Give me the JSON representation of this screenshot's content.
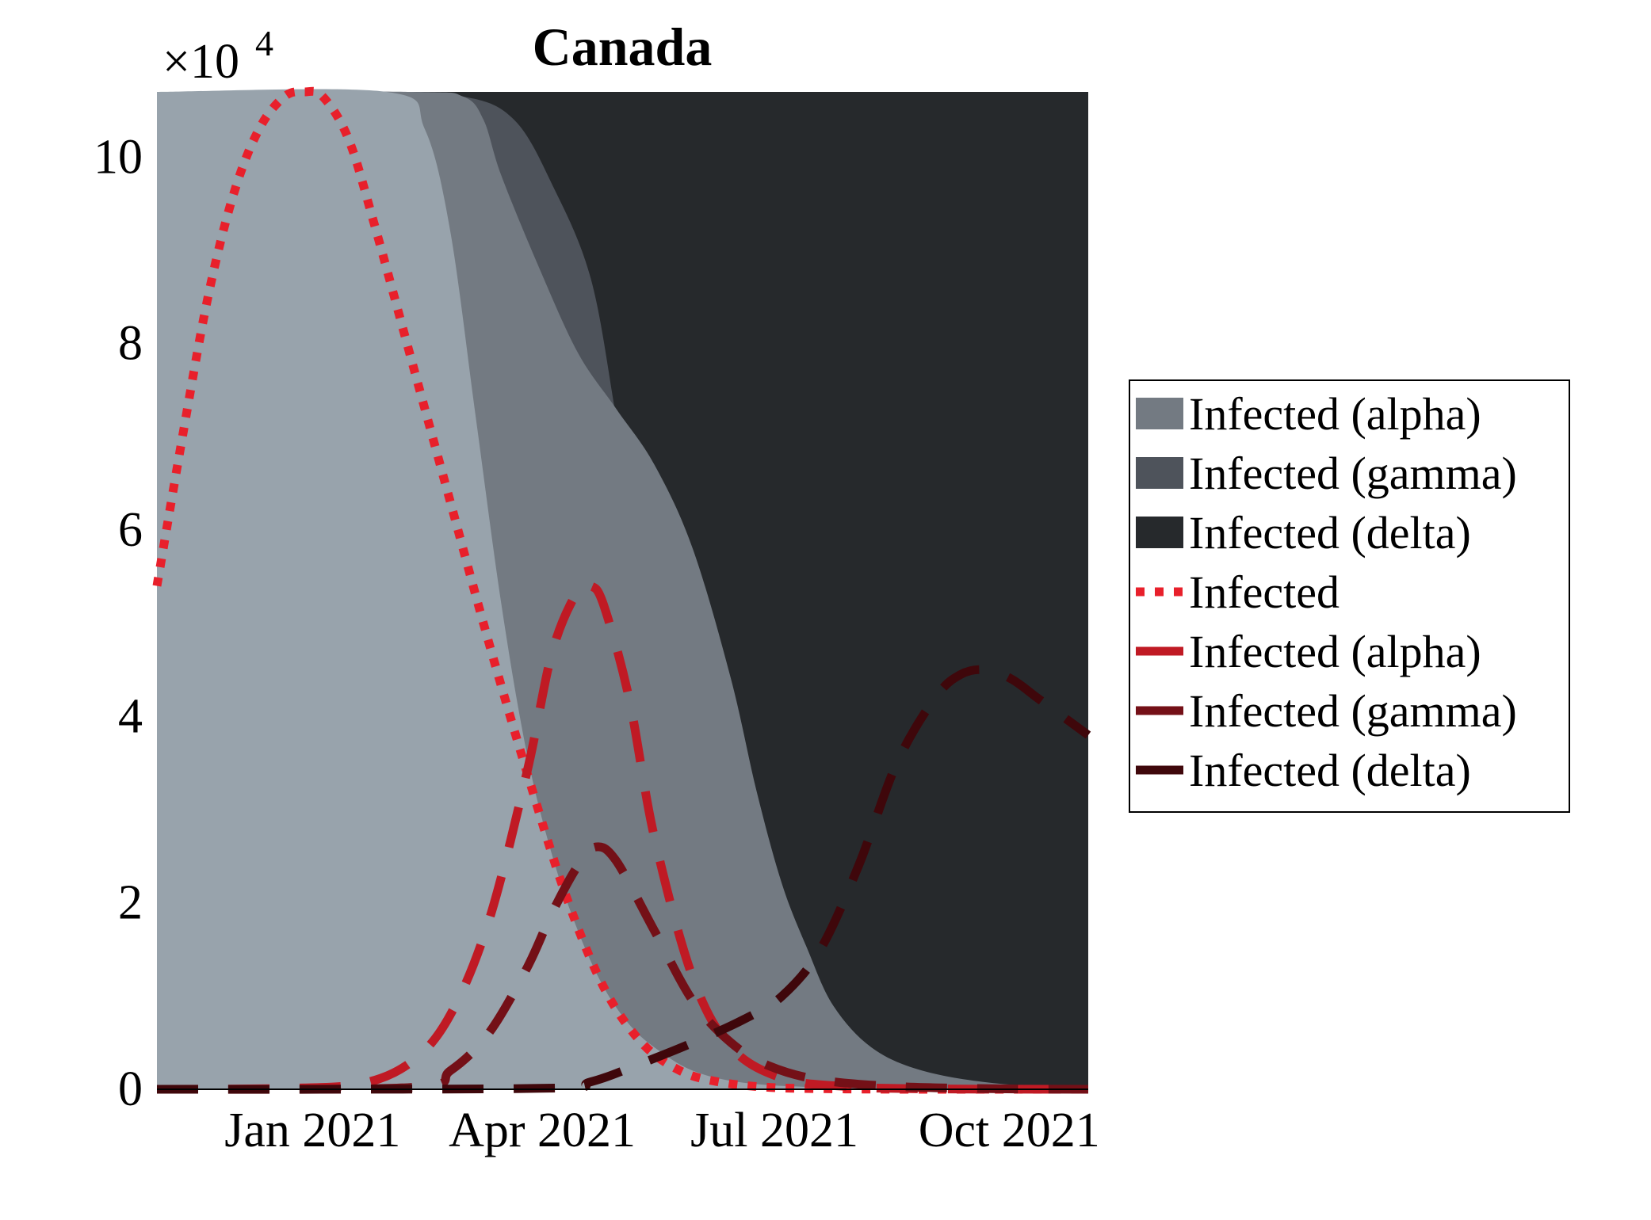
{
  "chart_data": {
    "type": "area",
    "title": "Canada",
    "y_multiplier_label": "×10",
    "y_multiplier_exponent": "4",
    "xlabel": "",
    "ylabel": "",
    "x_unit": "days since 2020-11-01 (axis shows month ticks)",
    "xlim": [
      0,
      365
    ],
    "ylim": [
      0,
      107000
    ],
    "x_ticks": [
      {
        "label": "Jan 2021",
        "x": 61
      },
      {
        "label": "Apr 2021",
        "x": 151
      },
      {
        "label": "Jul 2021",
        "x": 242
      },
      {
        "label": "Oct 2021",
        "x": 334
      }
    ],
    "y_ticks": [
      {
        "label": "0",
        "y": 0
      },
      {
        "label": "2",
        "y": 20000
      },
      {
        "label": "4",
        "y": 40000
      },
      {
        "label": "6",
        "y": 60000
      },
      {
        "label": "8",
        "y": 80000
      },
      {
        "label": "10",
        "y": 100000
      }
    ],
    "grid": false,
    "legend_position": "right",
    "stacked_area_note": "variant share of total scaled to plot height",
    "areas": [
      {
        "name": "Infected (alpha)",
        "color": "#737a82",
        "x": [
          0,
          100,
          120,
          128,
          135,
          150,
          165,
          180,
          195,
          210,
          225,
          235,
          245,
          255,
          265,
          280,
          300,
          330,
          365
        ],
        "top": [
          107000,
          107000,
          106500,
          104000,
          98000,
          88000,
          79000,
          73000,
          67000,
          58000,
          44000,
          32000,
          22000,
          15000,
          9000,
          4500,
          2000,
          600,
          200
        ]
      },
      {
        "name": "Infected (gamma)",
        "color": "#4e535b",
        "x": [
          0,
          80,
          120,
          140,
          155,
          170,
          180,
          190,
          200,
          215,
          225,
          235,
          245,
          260,
          275,
          300,
          330,
          365
        ],
        "top": [
          107000,
          107000,
          106500,
          104000,
          97000,
          87000,
          72000,
          55000,
          43000,
          28000,
          17000,
          10000,
          6000,
          3000,
          1200,
          500,
          200,
          100
        ]
      },
      {
        "name": "Infected (delta)",
        "color": "#26292c"
      }
    ],
    "base_area_color": "#98a3ac",
    "series": [
      {
        "name": "Infected",
        "color": "#e8202b",
        "dash": "dotted",
        "x": [
          0,
          10,
          20,
          30,
          40,
          50,
          58,
          65,
          75,
          85,
          100,
          115,
          130,
          145,
          160,
          175,
          190,
          205,
          220,
          240,
          265,
          300,
          365
        ],
        "y": [
          54000,
          70000,
          85000,
          96000,
          103000,
          106500,
          107000,
          106500,
          102000,
          93000,
          78000,
          63000,
          48000,
          34000,
          21000,
          11000,
          5000,
          2000,
          800,
          200,
          50,
          0,
          0
        ]
      },
      {
        "name": "Infected (alpha)",
        "color": "#c01a24",
        "dash": "dashed",
        "x": [
          0,
          50,
          80,
          100,
          115,
          130,
          145,
          155,
          165,
          170,
          175,
          185,
          195,
          210,
          225,
          245,
          270,
          300,
          365
        ],
        "y": [
          0,
          100,
          600,
          3000,
          8000,
          18000,
          34000,
          47000,
          53500,
          54000,
          52000,
          42000,
          27000,
          12000,
          4500,
          1200,
          300,
          50,
          0
        ]
      },
      {
        "name": "Infected (gamma)",
        "color": "#741017",
        "dash": "dashed",
        "x": [
          0,
          100,
          115,
          130,
          145,
          155,
          165,
          172,
          180,
          195,
          210,
          225,
          240,
          260,
          290,
          330,
          365
        ],
        "y": [
          0,
          200,
          2000,
          6000,
          13000,
          19000,
          24000,
          26000,
          24500,
          17000,
          9500,
          5000,
          2500,
          1000,
          300,
          50,
          0
        ]
      },
      {
        "name": "Infected (delta)",
        "color": "#3f070b",
        "dash": "dashed",
        "x": [
          0,
          150,
          170,
          190,
          210,
          230,
          245,
          260,
          275,
          290,
          305,
          315,
          325,
          335,
          345,
          355,
          365
        ],
        "y": [
          0,
          100,
          800,
          2800,
          5000,
          7500,
          10000,
          15000,
          24000,
          35000,
          42000,
          44500,
          45000,
          44000,
          42000,
          40000,
          38000
        ]
      }
    ]
  }
}
